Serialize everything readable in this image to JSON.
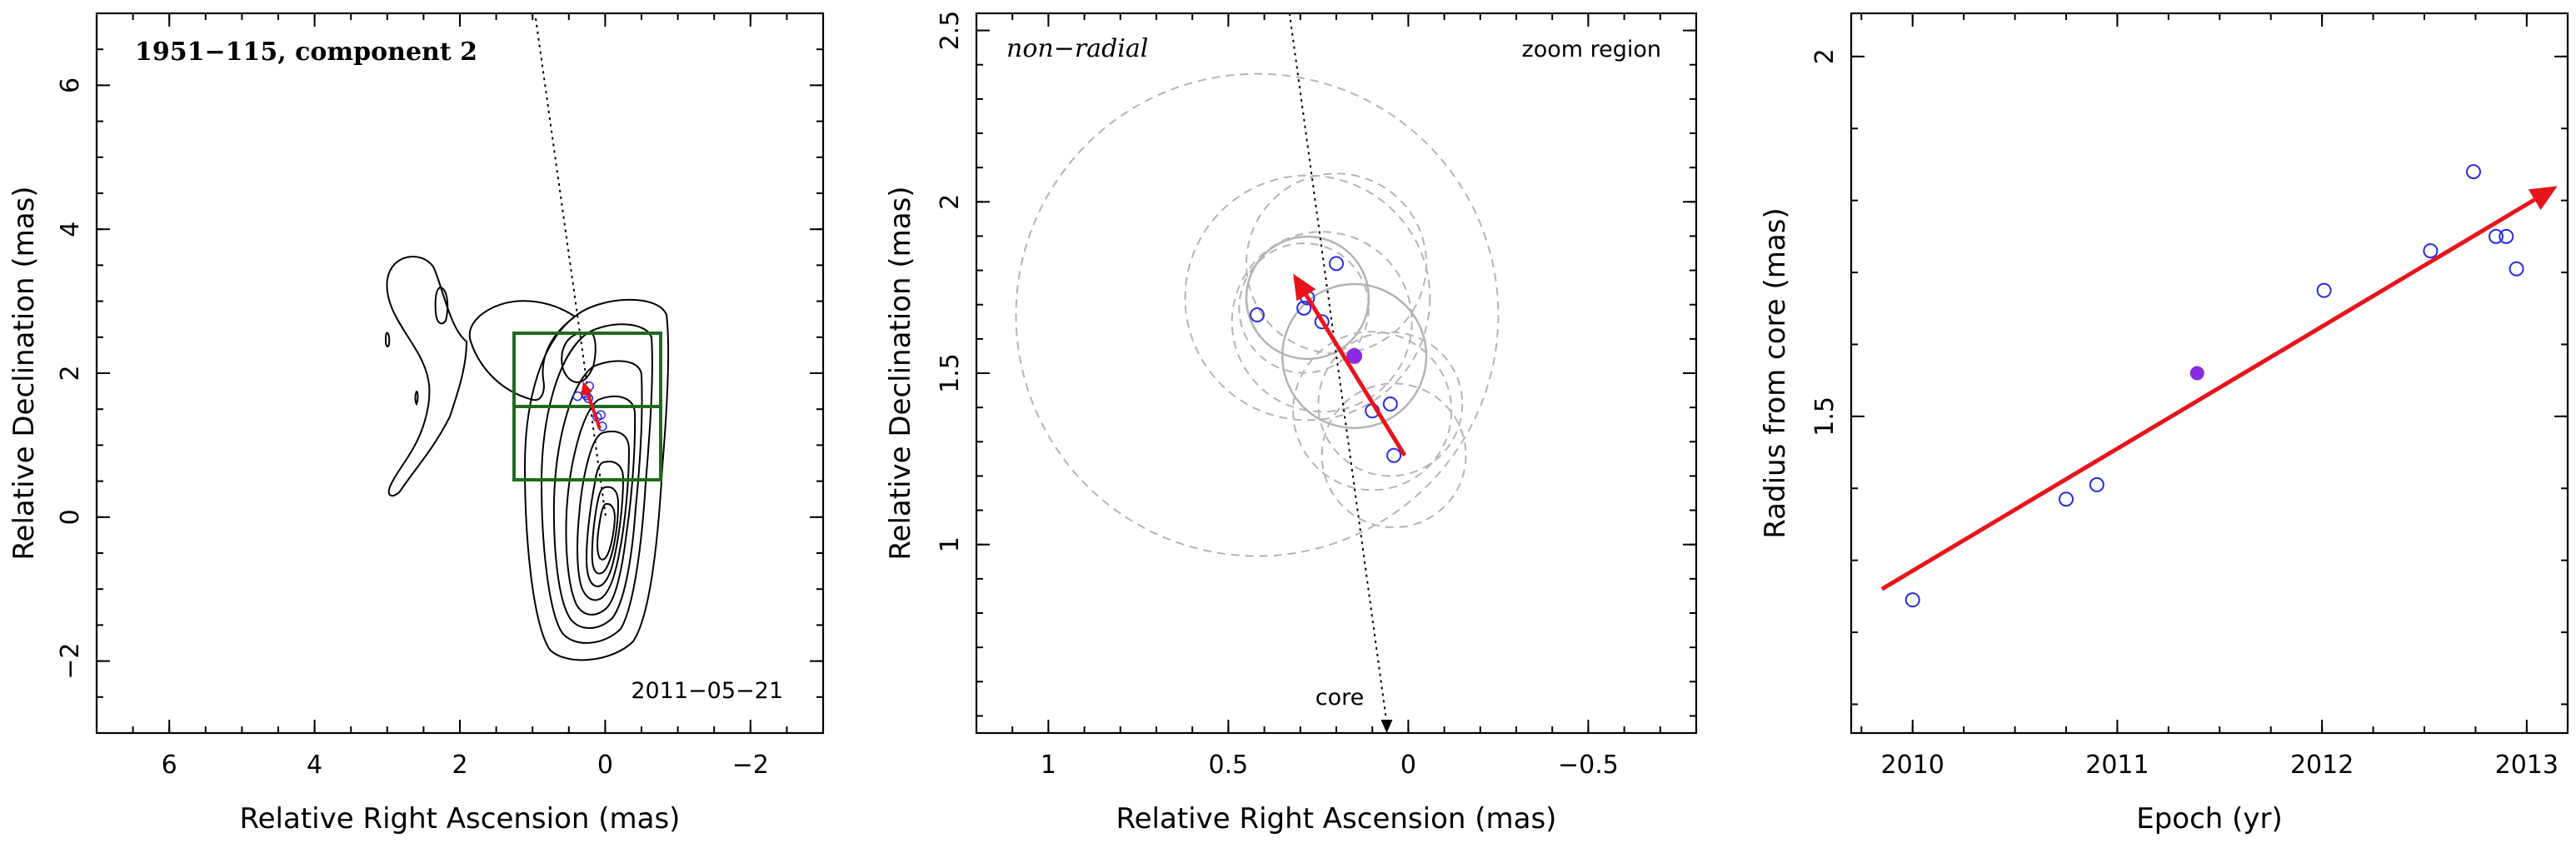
{
  "colors": {
    "contour": "#000000",
    "box": "#1e6b1e",
    "arrow": "#e8141c",
    "open_marker": "#2a2ae0",
    "filled_marker": "#8a2be2",
    "uncertainty": "#b4b4b4"
  },
  "chart_data": [
    {
      "type": "contour",
      "title": "1951−115, component 2",
      "xlabel": "Relative Right Ascension (mas)",
      "ylabel": "Relative Declination (mas)",
      "xlim": [
        7,
        -3
      ],
      "ylim": [
        -3,
        7
      ],
      "xticks": [
        6,
        4,
        2,
        0,
        -2
      ],
      "xtick_labels": [
        "6",
        "4",
        "2",
        "0",
        "−2"
      ],
      "yticks": [
        -2,
        0,
        2,
        4,
        6
      ],
      "ytick_labels": [
        "−2",
        "0",
        "2",
        "4",
        "6"
      ],
      "date_label": "2011−05−21",
      "core": [
        0,
        0
      ],
      "boxes": [
        {
          "x0": 1.25,
          "x1": -0.8,
          "y0": 0.55,
          "y1": 2.55
        },
        {
          "x0": 1.25,
          "x1": -0.8,
          "y0": 1.55,
          "y1": 1.55
        }
      ],
      "core_direction_line": [
        [
          0.9,
          6.9
        ],
        [
          0.0,
          0.0
        ]
      ],
      "component_points": [
        {
          "x": 0.38,
          "y": 1.68
        },
        {
          "x": 0.27,
          "y": 1.72
        },
        {
          "x": 0.26,
          "y": 1.69
        },
        {
          "x": 0.22,
          "y": 1.82
        },
        {
          "x": 0.23,
          "y": 1.65
        },
        {
          "x": 0.11,
          "y": 1.39
        },
        {
          "x": 0.06,
          "y": 1.42
        },
        {
          "x": 0.04,
          "y": 1.26
        }
      ],
      "motion_arrow": {
        "from": [
          0.04,
          1.26
        ],
        "to": [
          0.31,
          1.77
        ]
      },
      "grid": false
    },
    {
      "type": "scatter",
      "xlabel": "Relative Right Ascension (mas)",
      "ylabel": "Relative Declination (mas)",
      "xlim": [
        1.2,
        -0.8
      ],
      "ylim": [
        0.45,
        2.55
      ],
      "xticks": [
        1,
        0.5,
        0,
        -0.5
      ],
      "xtick_labels": [
        "1",
        "0.5",
        "0",
        "−0.5"
      ],
      "yticks": [
        1,
        1.5,
        2,
        2.5
      ],
      "ytick_labels": [
        "1",
        "1.5",
        "2",
        "2.5"
      ],
      "label_left": "non−radial",
      "label_right": "zoom region",
      "core_label": "core",
      "open_points": [
        {
          "x": 0.42,
          "y": 1.67
        },
        {
          "x": 0.28,
          "y": 1.72
        },
        {
          "x": 0.29,
          "y": 1.69
        },
        {
          "x": 0.2,
          "y": 1.82
        },
        {
          "x": 0.24,
          "y": 1.65
        },
        {
          "x": 0.1,
          "y": 1.39
        },
        {
          "x": 0.05,
          "y": 1.41
        },
        {
          "x": 0.04,
          "y": 1.26
        }
      ],
      "filled_point": {
        "x": 0.15,
        "y": 1.55
      },
      "uncertainty_circles": [
        {
          "x": 0.42,
          "y": 1.67,
          "r": 0.67
        },
        {
          "x": 0.28,
          "y": 1.72,
          "r": 0.34
        },
        {
          "x": 0.29,
          "y": 1.69,
          "r": 0.18
        },
        {
          "x": 0.2,
          "y": 1.82,
          "r": 0.25
        },
        {
          "x": 0.24,
          "y": 1.65,
          "r": 0.25
        },
        {
          "x": 0.1,
          "y": 1.39,
          "r": 0.22
        },
        {
          "x": 0.05,
          "y": 1.41,
          "r": 0.2
        },
        {
          "x": 0.04,
          "y": 1.26,
          "r": 0.2
        }
      ],
      "uncertainty_circles_solid": [
        {
          "x": 0.15,
          "y": 1.55,
          "r": 0.2
        },
        {
          "x": 0.28,
          "y": 1.72,
          "r": 0.17
        }
      ],
      "core_direction_line": {
        "from": [
          0.33,
          2.55
        ],
        "to": [
          0.06,
          0.45
        ]
      },
      "motion_arrow": {
        "from": [
          0.01,
          1.26
        ],
        "to": [
          0.32,
          1.79
        ]
      },
      "grid": false
    },
    {
      "type": "scatter",
      "xlabel": "Epoch (yr)",
      "ylabel": "Radius from core (mas)",
      "xlim": [
        2009.7,
        2013.2
      ],
      "ylim": [
        1.06,
        2.06
      ],
      "xticks": [
        2010,
        2011,
        2012,
        2013
      ],
      "xtick_labels": [
        "2010",
        "2011",
        "2012",
        "2013"
      ],
      "yticks": [
        1.5,
        2
      ],
      "ytick_labels": [
        "1.5",
        "2"
      ],
      "open_points": [
        {
          "x": 2010.0,
          "y": 1.245
        },
        {
          "x": 2010.75,
          "y": 1.385
        },
        {
          "x": 2010.9,
          "y": 1.405
        },
        {
          "x": 2012.01,
          "y": 1.675
        },
        {
          "x": 2012.53,
          "y": 1.73
        },
        {
          "x": 2012.74,
          "y": 1.84
        },
        {
          "x": 2012.85,
          "y": 1.75
        },
        {
          "x": 2012.9,
          "y": 1.75
        },
        {
          "x": 2012.95,
          "y": 1.705
        }
      ],
      "filled_point": {
        "x": 2011.39,
        "y": 1.56
      },
      "fit_arrow": {
        "from": [
          2009.85,
          1.26
        ],
        "to": [
          2013.15,
          1.82
        ]
      },
      "grid": false
    }
  ]
}
